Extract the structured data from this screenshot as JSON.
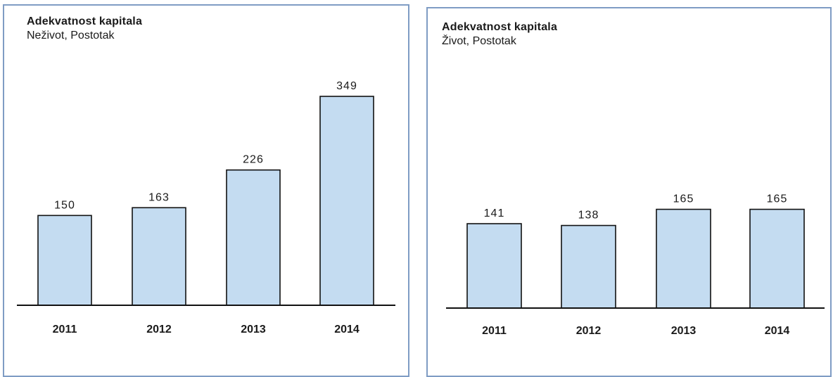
{
  "chart_data": [
    {
      "type": "bar",
      "title": "Adekvatnost kapitala",
      "subtitle": "Neživot, Postotak",
      "categories": [
        "2011",
        "2012",
        "2013",
        "2014"
      ],
      "values": [
        150,
        163,
        226,
        349
      ],
      "data_labels": [
        "150",
        "163",
        "226",
        "349"
      ],
      "ylim": [
        0,
        380
      ],
      "grid": false,
      "bar_color": "#c4dcf1"
    },
    {
      "type": "bar",
      "title": "Adekvatnost kapitala",
      "subtitle": "Život, Postotak",
      "categories": [
        "2011",
        "2012",
        "2013",
        "2014"
      ],
      "values": [
        141,
        138,
        165,
        165
      ],
      "data_labels": [
        "141",
        "138",
        "165",
        "165"
      ],
      "ylim": [
        0,
        380
      ],
      "grid": false,
      "bar_color": "#c4dcf1"
    }
  ]
}
